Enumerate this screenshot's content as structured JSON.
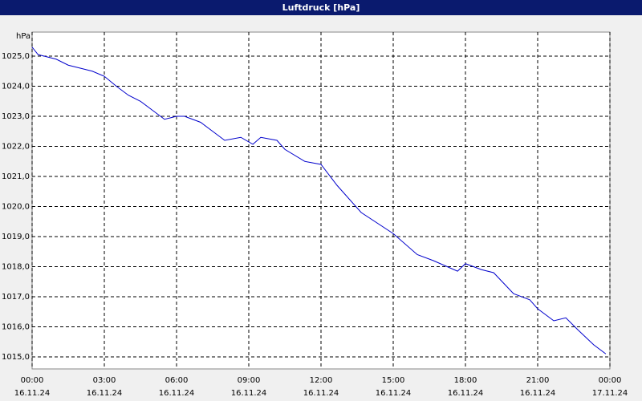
{
  "chart_data": {
    "type": "line",
    "title": "Luftdruck [hPa]",
    "y_label": "hPa",
    "series": [
      {
        "color": "#0000cc",
        "x": [
          0,
          0.25,
          0.5,
          1,
          1.5,
          2,
          2.5,
          3,
          3.5,
          4,
          4.5,
          5,
          5.5,
          6,
          6.33,
          7,
          7.5,
          8,
          8.67,
          9.17,
          9.5,
          10.17,
          10.5,
          11.33,
          12,
          12.67,
          13.67,
          15,
          16,
          16.67,
          17.67,
          18,
          18.67,
          19.17,
          20,
          20.67,
          21,
          21.67,
          22.17,
          22.67,
          23.33,
          23.83
        ],
        "values": [
          1025.3,
          1025.05,
          1025.0,
          1024.9,
          1024.7,
          1024.6,
          1024.5,
          1024.33,
          1024.0,
          1023.7,
          1023.5,
          1023.2,
          1022.9,
          1023.0,
          1023.0,
          1022.8,
          1022.5,
          1022.2,
          1022.3,
          1022.07,
          1022.3,
          1022.2,
          1021.9,
          1021.5,
          1021.4,
          1020.7,
          1019.8,
          1019.1,
          1018.4,
          1018.2,
          1017.85,
          1018.1,
          1017.9,
          1017.8,
          1017.1,
          1016.9,
          1016.6,
          1016.2,
          1016.3,
          1015.9,
          1015.4,
          1015.1
        ]
      }
    ],
    "xlim": [
      0,
      24
    ],
    "xticks": [
      {
        "value": 0,
        "label": "00:00",
        "date": "16.11.24"
      },
      {
        "value": 3,
        "label": "03:00",
        "date": "16.11.24"
      },
      {
        "value": 6,
        "label": "06:00",
        "date": "16.11.24"
      },
      {
        "value": 9,
        "label": "09:00",
        "date": "16.11.24"
      },
      {
        "value": 12,
        "label": "12:00",
        "date": "16.11.24"
      },
      {
        "value": 15,
        "label": "15:00",
        "date": "16.11.24"
      },
      {
        "value": 18,
        "label": "18:00",
        "date": "16.11.24"
      },
      {
        "value": 21,
        "label": "21:00",
        "date": "16.11.24"
      },
      {
        "value": 24,
        "label": "00:00",
        "date": "17.11.24"
      }
    ],
    "ylim": [
      1014.6,
      1025.8
    ],
    "yticks": [
      {
        "value": 1015,
        "label": "1015,0"
      },
      {
        "value": 1016,
        "label": "1016,0"
      },
      {
        "value": 1017,
        "label": "1017,0"
      },
      {
        "value": 1018,
        "label": "1018,0"
      },
      {
        "value": 1019,
        "label": "1019,0"
      },
      {
        "value": 1020,
        "label": "1020,0"
      },
      {
        "value": 1021,
        "label": "1021,0"
      },
      {
        "value": 1022,
        "label": "1022,0"
      },
      {
        "value": 1023,
        "label": "1023,0"
      },
      {
        "value": 1024,
        "label": "1024,0"
      },
      {
        "value": 1025,
        "label": "1025,0"
      }
    ],
    "grid": true
  }
}
